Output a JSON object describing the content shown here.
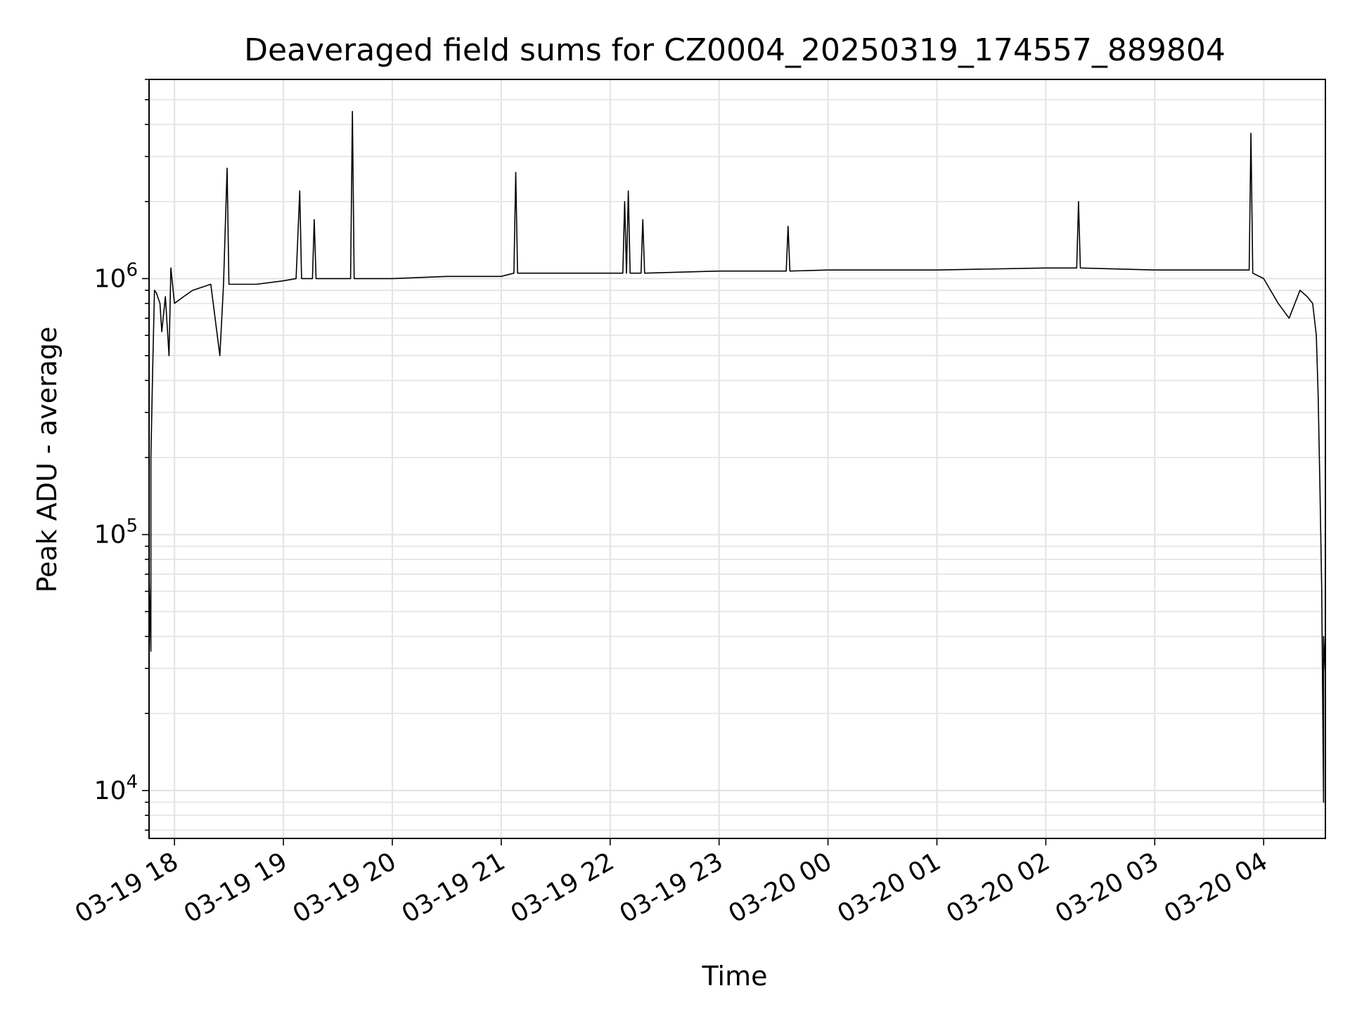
{
  "chart_data": {
    "type": "line",
    "title": "Deaveraged field sums for CZ0004_20250319_174557_889804",
    "xlabel": "Time",
    "ylabel": "Peak ADU - average",
    "yscale": "log",
    "ylim": [
      6500,
      6000000
    ],
    "xlim": [
      "2025-03-19 17:46",
      "2025-03-20 04:34"
    ],
    "grid": true,
    "line_color": "#000000",
    "grid_color": "#e5e5e5",
    "x_ticks": [
      {
        "x": "2025-03-19 18:00",
        "label": "03-19 18"
      },
      {
        "x": "2025-03-19 19:00",
        "label": "03-19 19"
      },
      {
        "x": "2025-03-19 20:00",
        "label": "03-19 20"
      },
      {
        "x": "2025-03-19 21:00",
        "label": "03-19 21"
      },
      {
        "x": "2025-03-19 22:00",
        "label": "03-19 22"
      },
      {
        "x": "2025-03-19 23:00",
        "label": "03-19 23"
      },
      {
        "x": "2025-03-20 00:00",
        "label": "03-20 00"
      },
      {
        "x": "2025-03-20 01:00",
        "label": "03-20 01"
      },
      {
        "x": "2025-03-20 02:00",
        "label": "03-20 02"
      },
      {
        "x": "2025-03-20 03:00",
        "label": "03-20 03"
      },
      {
        "x": "2025-03-20 04:00",
        "label": "03-20 04"
      }
    ],
    "y_ticks": [
      {
        "value": 10000,
        "base": "10",
        "exp": "4"
      },
      {
        "value": 100000,
        "base": "10",
        "exp": "5"
      },
      {
        "value": 1000000,
        "base": "10",
        "exp": "6"
      }
    ],
    "series": [
      {
        "points": [
          [
            "2025-03-19 17:46",
            13000
          ],
          [
            "2025-03-19 17:46",
            70000
          ],
          [
            "2025-03-19 17:47",
            35000
          ],
          [
            "2025-03-19 17:47",
            200000
          ],
          [
            "2025-03-19 17:48",
            450000
          ],
          [
            "2025-03-19 17:49",
            900000
          ],
          [
            "2025-03-19 17:50",
            880000
          ],
          [
            "2025-03-19 17:52",
            800000
          ],
          [
            "2025-03-19 17:53",
            620000
          ],
          [
            "2025-03-19 17:55",
            850000
          ],
          [
            "2025-03-19 17:57",
            500000
          ],
          [
            "2025-03-19 17:58",
            1100000
          ],
          [
            "2025-03-19 18:00",
            800000
          ],
          [
            "2025-03-19 18:05",
            850000
          ],
          [
            "2025-03-19 18:10",
            900000
          ],
          [
            "2025-03-19 18:20",
            950000
          ],
          [
            "2025-03-19 18:25",
            500000
          ],
          [
            "2025-03-19 18:27",
            950000
          ],
          [
            "2025-03-19 18:29",
            2700000
          ],
          [
            "2025-03-19 18:30",
            950000
          ],
          [
            "2025-03-19 18:45",
            950000
          ],
          [
            "2025-03-19 19:00",
            980000
          ],
          [
            "2025-03-19 19:07",
            1000000
          ],
          [
            "2025-03-19 19:09",
            2200000
          ],
          [
            "2025-03-19 19:10",
            1000000
          ],
          [
            "2025-03-19 19:16",
            1000000
          ],
          [
            "2025-03-19 19:17",
            1700000
          ],
          [
            "2025-03-19 19:18",
            1000000
          ],
          [
            "2025-03-19 19:37",
            1000000
          ],
          [
            "2025-03-19 19:38",
            4500000
          ],
          [
            "2025-03-19 19:39",
            1000000
          ],
          [
            "2025-03-19 20:00",
            1000000
          ],
          [
            "2025-03-19 20:30",
            1020000
          ],
          [
            "2025-03-19 21:00",
            1020000
          ],
          [
            "2025-03-19 21:07",
            1050000
          ],
          [
            "2025-03-19 21:08",
            2600000
          ],
          [
            "2025-03-19 21:09",
            1050000
          ],
          [
            "2025-03-19 21:30",
            1050000
          ],
          [
            "2025-03-19 22:00",
            1050000
          ],
          [
            "2025-03-19 22:07",
            1050000
          ],
          [
            "2025-03-19 22:08",
            2000000
          ],
          [
            "2025-03-19 22:09",
            1050000
          ],
          [
            "2025-03-19 22:10",
            2200000
          ],
          [
            "2025-03-19 22:11",
            1050000
          ],
          [
            "2025-03-19 22:17",
            1050000
          ],
          [
            "2025-03-19 22:18",
            1700000
          ],
          [
            "2025-03-19 22:19",
            1050000
          ],
          [
            "2025-03-19 23:00",
            1070000
          ],
          [
            "2025-03-19 23:37",
            1070000
          ],
          [
            "2025-03-19 23:38",
            1600000
          ],
          [
            "2025-03-19 23:39",
            1070000
          ],
          [
            "2025-03-20 00:00",
            1080000
          ],
          [
            "2025-03-20 01:00",
            1080000
          ],
          [
            "2025-03-20 02:00",
            1100000
          ],
          [
            "2025-03-20 02:17",
            1100000
          ],
          [
            "2025-03-20 02:18",
            2000000
          ],
          [
            "2025-03-20 02:19",
            1100000
          ],
          [
            "2025-03-20 03:00",
            1080000
          ],
          [
            "2025-03-20 03:52",
            1080000
          ],
          [
            "2025-03-20 03:53",
            3700000
          ],
          [
            "2025-03-20 03:54",
            1050000
          ],
          [
            "2025-03-20 04:00",
            1000000
          ],
          [
            "2025-03-20 04:08",
            800000
          ],
          [
            "2025-03-20 04:14",
            700000
          ],
          [
            "2025-03-20 04:20",
            900000
          ],
          [
            "2025-03-20 04:24",
            850000
          ],
          [
            "2025-03-20 04:27",
            800000
          ],
          [
            "2025-03-20 04:29",
            600000
          ],
          [
            "2025-03-20 04:30",
            350000
          ],
          [
            "2025-03-20 04:31",
            150000
          ],
          [
            "2025-03-20 04:32",
            60000
          ],
          [
            "2025-03-20 04:33",
            9000
          ],
          [
            "2025-03-20 04:33",
            40000
          ],
          [
            "2025-03-20 04:34",
            28000
          ]
        ]
      }
    ]
  }
}
